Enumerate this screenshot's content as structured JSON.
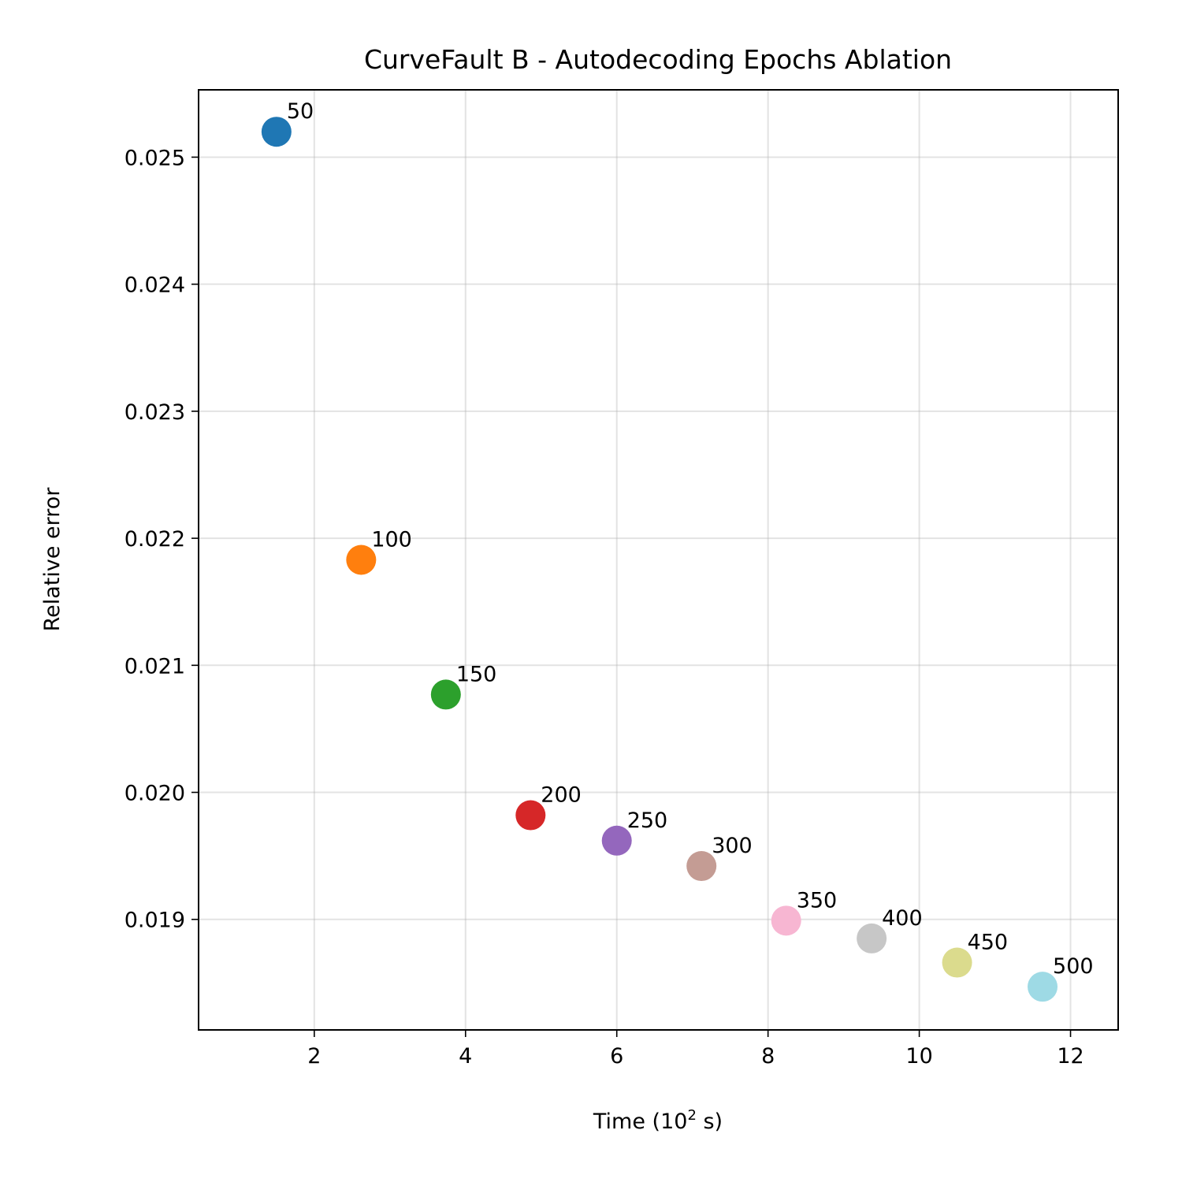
{
  "chart_data": {
    "type": "scatter",
    "title": "CurveFault B - Autodecoding Epochs Ablation",
    "xlabel_main": "Time (10",
    "xlabel_sup": "2",
    "xlabel_tail": " s)",
    "ylabel": "Relative error",
    "xlim": [
      0.47,
      12.63
    ],
    "ylim": [
      0.01813,
      0.02553
    ],
    "xticks": [
      2,
      4,
      6,
      8,
      10,
      12
    ],
    "xtick_labels": [
      "2",
      "4",
      "6",
      "8",
      "10",
      "12"
    ],
    "yticks": [
      0.019,
      0.02,
      0.021,
      0.022,
      0.023,
      0.024,
      0.025
    ],
    "ytick_labels": [
      "0.019",
      "0.020",
      "0.021",
      "0.022",
      "0.023",
      "0.024",
      "0.025"
    ],
    "grid": true,
    "points": [
      {
        "label": "50",
        "x": 1.5,
        "y": 0.0252,
        "color": "#1f77b4"
      },
      {
        "label": "100",
        "x": 2.62,
        "y": 0.02183,
        "color": "#ff7f0e"
      },
      {
        "label": "150",
        "x": 3.74,
        "y": 0.02077,
        "color": "#2ca02c"
      },
      {
        "label": "200",
        "x": 4.86,
        "y": 0.01982,
        "color": "#d62728"
      },
      {
        "label": "250",
        "x": 6.0,
        "y": 0.01962,
        "color": "#9467bd"
      },
      {
        "label": "300",
        "x": 7.12,
        "y": 0.01942,
        "color": "#c49c94"
      },
      {
        "label": "350",
        "x": 8.24,
        "y": 0.01899,
        "color": "#f7b6d2"
      },
      {
        "label": "400",
        "x": 9.37,
        "y": 0.01885,
        "color": "#c7c7c7"
      },
      {
        "label": "450",
        "x": 10.5,
        "y": 0.01866,
        "color": "#dbdb8d"
      },
      {
        "label": "500",
        "x": 11.63,
        "y": 0.01847,
        "color": "#9edae5"
      }
    ]
  }
}
